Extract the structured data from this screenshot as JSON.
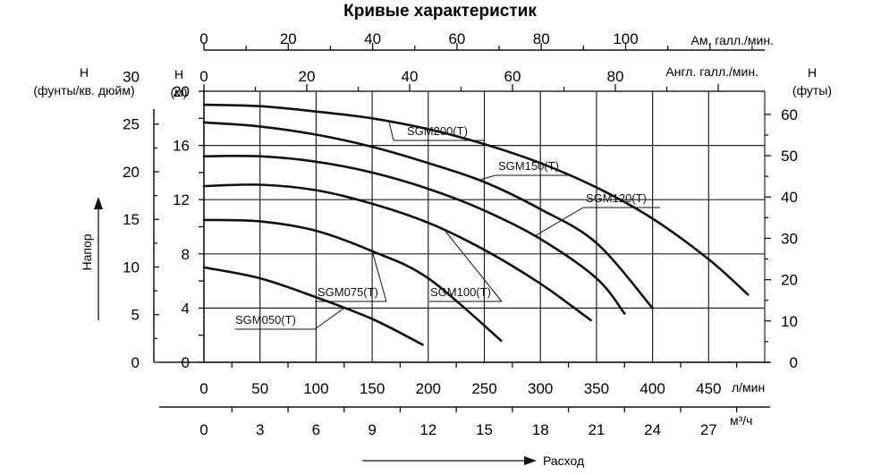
{
  "chart_data": {
    "type": "line",
    "title": "Кривые характеристик",
    "x_label": "Расход",
    "y_label": "Напор",
    "x_axes": {
      "lpm": {
        "unit": "л/мин",
        "range": [
          0,
          500
        ],
        "ticks": [
          0,
          50,
          100,
          150,
          200,
          250,
          300,
          350,
          400,
          450
        ]
      },
      "m3h": {
        "unit": "м³/ч",
        "range": [
          0,
          30
        ],
        "ticks": [
          0,
          3,
          6,
          9,
          12,
          15,
          18,
          21,
          24,
          27
        ]
      },
      "us_gpm": {
        "unit": "Ам. галл./мин.",
        "range": [
          0,
          132.1
        ],
        "ticks": [
          0,
          20,
          40,
          60,
          80,
          100
        ]
      },
      "uk_gpm": {
        "unit": "Англ. галл./мин.",
        "range": [
          0,
          110
        ],
        "ticks": [
          0,
          20,
          40,
          60,
          80
        ]
      }
    },
    "y_axes": {
      "meters": {
        "label": "Н",
        "unit": "(м)",
        "range": [
          0,
          20
        ],
        "ticks": [
          0,
          4,
          8,
          12,
          16,
          20
        ]
      },
      "psi": {
        "label": "Н",
        "unit": "(фунты/кв. дюйм)",
        "range": [
          0,
          28.45
        ],
        "ticks": [
          0,
          5,
          10,
          15,
          20,
          25,
          30
        ]
      },
      "feet": {
        "label": "Н",
        "unit": "(футы)",
        "range": [
          0,
          65.6
        ],
        "ticks": [
          0,
          10,
          20,
          30,
          40,
          50,
          60
        ]
      }
    },
    "grid": true,
    "series": [
      {
        "name": "SGM050(T)",
        "x": [
          0,
          50,
          100,
          150,
          195
        ],
        "y": [
          7.0,
          6.2,
          4.8,
          3.2,
          1.3
        ]
      },
      {
        "name": "SGM075(T)",
        "x": [
          0,
          50,
          100,
          150,
          200,
          265
        ],
        "y": [
          10.5,
          10.4,
          9.7,
          8.2,
          6.2,
          1.6
        ]
      },
      {
        "name": "SGM100(T)",
        "x": [
          0,
          50,
          100,
          150,
          200,
          250,
          300,
          345
        ],
        "y": [
          13.0,
          13.1,
          12.7,
          11.7,
          10.3,
          8.3,
          5.8,
          3.1
        ]
      },
      {
        "name": "SGM120(T)",
        "x": [
          0,
          50,
          100,
          150,
          200,
          250,
          300,
          350,
          375
        ],
        "y": [
          15.2,
          15.2,
          14.8,
          14.0,
          12.8,
          11.2,
          9.1,
          6.2,
          3.6
        ]
      },
      {
        "name": "SGM150(T)",
        "x": [
          0,
          50,
          100,
          150,
          200,
          250,
          300,
          350,
          400
        ],
        "y": [
          17.7,
          17.4,
          16.8,
          15.9,
          14.7,
          13.3,
          11.3,
          8.8,
          4.0
        ]
      },
      {
        "name": "SGM200(T)",
        "x": [
          0,
          50,
          100,
          150,
          200,
          250,
          300,
          350,
          400,
          450,
          485
        ],
        "y": [
          19.0,
          18.9,
          18.5,
          18.0,
          17.2,
          16.1,
          14.7,
          12.9,
          10.6,
          7.6,
          5.0
        ]
      }
    ]
  }
}
